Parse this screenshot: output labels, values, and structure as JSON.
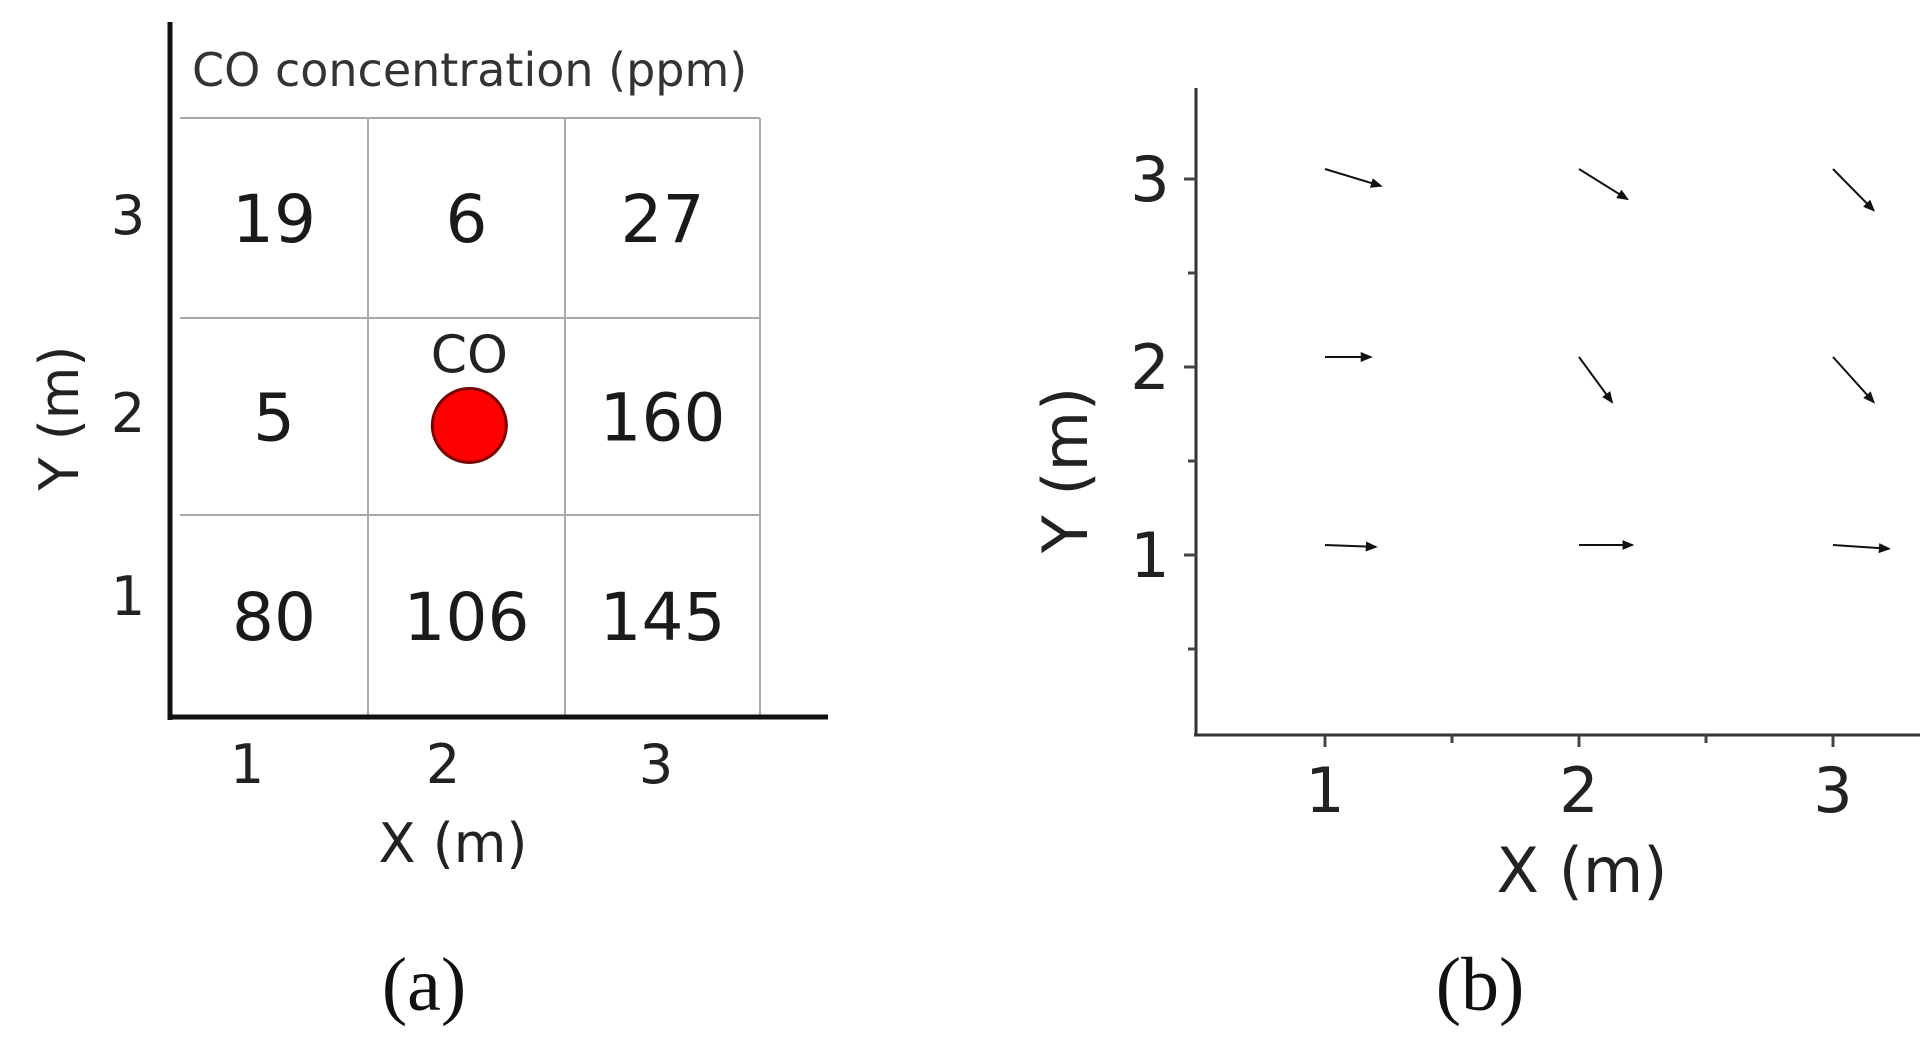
{
  "chart_data": [
    {
      "type": "heatmap",
      "panel_label": "(a)",
      "title": "CO concentration (ppm)",
      "xlabel": "X (m)",
      "ylabel": "Y (m)",
      "x_ticks": [
        "1",
        "2",
        "3"
      ],
      "y_ticks": [
        "1",
        "2",
        "3"
      ],
      "rows": [
        {
          "y": 3,
          "cells": [
            {
              "x": 1,
              "label": "19"
            },
            {
              "x": 2,
              "label": "6"
            },
            {
              "x": 3,
              "label": "27"
            }
          ]
        },
        {
          "y": 2,
          "cells": [
            {
              "x": 1,
              "label": "5"
            },
            {
              "x": 2,
              "label": ""
            },
            {
              "x": 3,
              "label": "160"
            }
          ]
        },
        {
          "y": 1,
          "cells": [
            {
              "x": 1,
              "label": "80"
            },
            {
              "x": 2,
              "label": "106"
            },
            {
              "x": 3,
              "label": "145"
            }
          ]
        }
      ],
      "source": {
        "x": 2.1,
        "y": 2.0,
        "label": "CO",
        "color": "#ff0000"
      },
      "grid": true
    },
    {
      "type": "scatter",
      "subtype": "vector-field",
      "panel_label": "(b)",
      "xlabel": "X (m)",
      "ylabel": "Y (m)",
      "xlim": [
        0.5,
        3.4
      ],
      "ylim": [
        0.4,
        3.5
      ],
      "x_ticks": [
        1,
        2,
        3
      ],
      "y_ticks": [
        1,
        2,
        3
      ],
      "grid": false,
      "vectors": [
        {
          "x": 1,
          "y": 3,
          "dx": 0.22,
          "dy": -0.09
        },
        {
          "x": 2,
          "y": 3,
          "dx": 0.19,
          "dy": -0.16
        },
        {
          "x": 3,
          "y": 3,
          "dx": 0.16,
          "dy": -0.22
        },
        {
          "x": 1,
          "y": 2,
          "dx": 0.18,
          "dy": 0.0
        },
        {
          "x": 2,
          "y": 2,
          "dx": 0.13,
          "dy": -0.24
        },
        {
          "x": 3,
          "y": 2,
          "dx": 0.16,
          "dy": -0.24
        },
        {
          "x": 1,
          "y": 1,
          "dx": 0.2,
          "dy": -0.01
        },
        {
          "x": 2,
          "y": 1,
          "dx": 0.21,
          "dy": 0.0
        },
        {
          "x": 3,
          "y": 1,
          "dx": 0.22,
          "dy": -0.02
        }
      ],
      "arrow_color": "#111111"
    }
  ]
}
